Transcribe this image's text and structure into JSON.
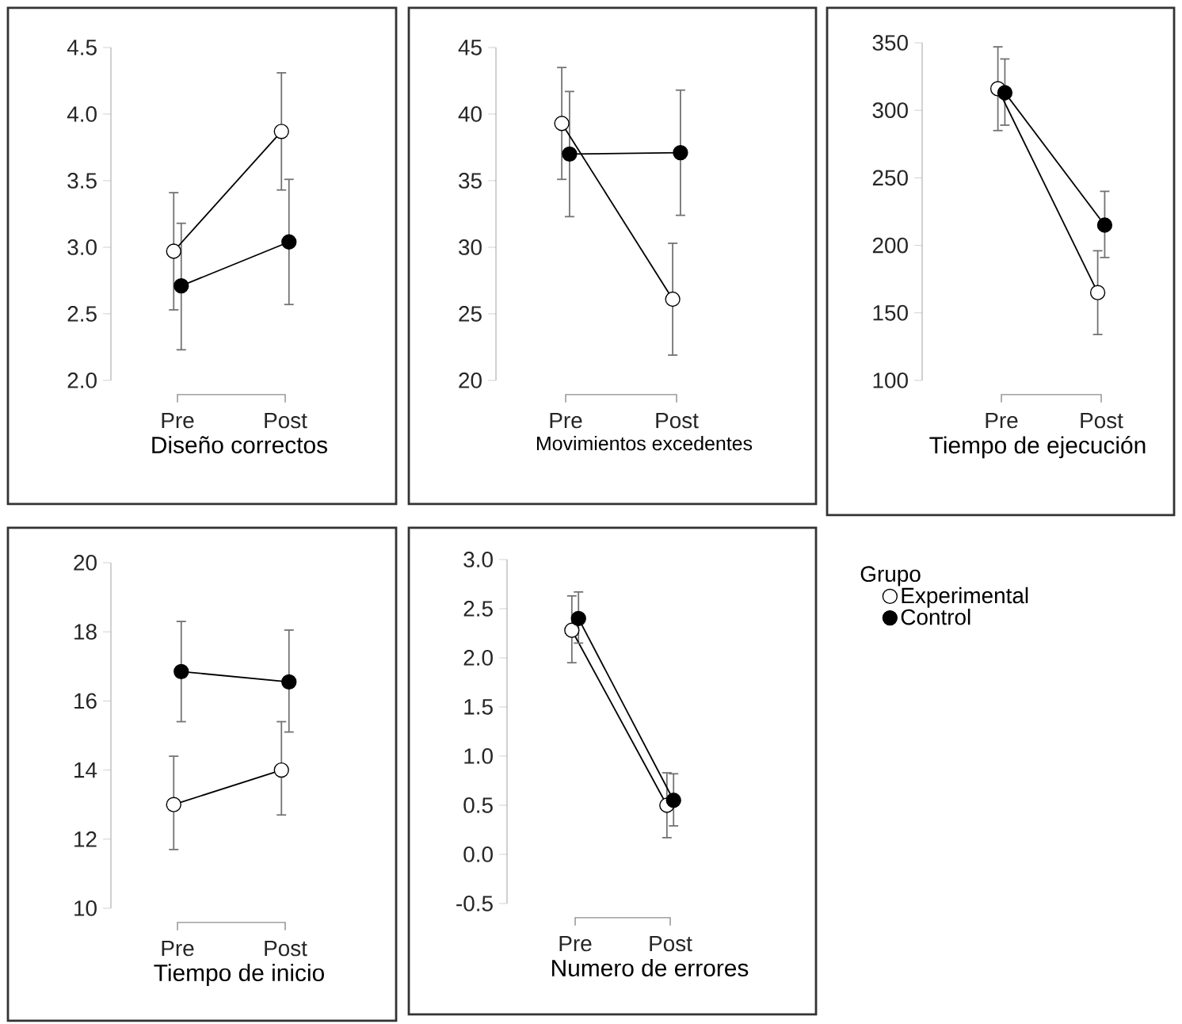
{
  "chart_data": [
    {
      "type": "line",
      "xlabel": "Diseño correctos",
      "categories": [
        "Pre",
        "Post"
      ],
      "ylim": [
        2.0,
        4.5
      ],
      "yticks": [
        {
          "value": 2.0,
          "label": "2.0"
        },
        {
          "value": 2.5,
          "label": "2.5"
        },
        {
          "value": 3.0,
          "label": "3.0"
        },
        {
          "value": 3.5,
          "label": "3.5"
        },
        {
          "value": 4.0,
          "label": "4.0"
        },
        {
          "value": 4.5,
          "label": "4.5"
        }
      ],
      "marker": "circle",
      "line_style": "solid",
      "series": [
        {
          "color": "#ffffff",
          "values": [
            2.97,
            3.87
          ],
          "errors": [
            [
              2.53,
              3.41
            ],
            [
              3.43,
              4.31
            ]
          ]
        },
        {
          "color": "#000000",
          "values": [
            2.71,
            3.04
          ],
          "errors": [
            [
              2.23,
              3.18
            ],
            [
              2.57,
              3.51
            ]
          ]
        }
      ]
    },
    {
      "type": "line",
      "xlabel": "Movimientos excedentes",
      "categories": [
        "Pre",
        "Post"
      ],
      "ylim": [
        20,
        45
      ],
      "yticks": [
        20,
        25,
        30,
        35,
        40,
        45
      ],
      "marker": "circle",
      "line_style": "solid",
      "series": [
        {
          "color": "#ffffff",
          "values": [
            39.3,
            26.1
          ],
          "errors": [
            [
              35.1,
              43.5
            ],
            [
              21.9,
              30.3
            ]
          ]
        },
        {
          "color": "#000000",
          "values": [
            37.0,
            37.1
          ],
          "errors": [
            [
              32.3,
              41.7
            ],
            [
              32.4,
              41.8
            ]
          ]
        }
      ]
    },
    {
      "type": "line",
      "xlabel": "Tiempo de ejecución",
      "categories": [
        "Pre",
        "Post"
      ],
      "ylim": [
        100,
        350
      ],
      "yticks": [
        100,
        150,
        200,
        250,
        300,
        350
      ],
      "marker": "circle",
      "line_style": "solid",
      "series": [
        {
          "color": "#ffffff",
          "values": [
            316,
            165
          ],
          "errors": [
            [
              285,
              347
            ],
            [
              134,
              196
            ]
          ]
        },
        {
          "color": "#000000",
          "values": [
            313,
            215
          ],
          "errors": [
            [
              289,
              338
            ],
            [
              191,
              240
            ]
          ]
        }
      ]
    },
    {
      "type": "line",
      "xlabel": "Tiempo de inicio",
      "categories": [
        "Pre",
        "Post"
      ],
      "ylim": [
        10,
        20
      ],
      "yticks": [
        10,
        12,
        14,
        16,
        18,
        20
      ],
      "marker": "circle",
      "line_style": "solid",
      "series": [
        {
          "color": "#ffffff",
          "values": [
            13.0,
            14.0
          ],
          "errors": [
            [
              11.7,
              14.4
            ],
            [
              12.7,
              15.4
            ]
          ]
        },
        {
          "color": "#000000",
          "values": [
            16.85,
            16.55
          ],
          "errors": [
            [
              15.4,
              18.3
            ],
            [
              15.1,
              18.05
            ]
          ]
        }
      ]
    },
    {
      "type": "line",
      "xlabel": "Numero de errores",
      "categories": [
        "Pre",
        "Post"
      ],
      "ylim": [
        -0.5,
        3.0
      ],
      "yticks": [
        {
          "value": -0.5,
          "label": "-0.5"
        },
        {
          "value": 0.0,
          "label": "0.0"
        },
        {
          "value": 0.5,
          "label": "0.5"
        },
        {
          "value": 1.0,
          "label": "1.0"
        },
        {
          "value": 1.5,
          "label": "1.5"
        },
        {
          "value": 2.0,
          "label": "2.0"
        },
        {
          "value": 2.5,
          "label": "2.5"
        },
        {
          "value": 3.0,
          "label": "3.0"
        }
      ],
      "marker": "circle",
      "line_style": "solid",
      "legend": "right",
      "legend_title": "Grupo",
      "series": [
        {
          "name": "Experimental",
          "color": "#ffffff",
          "values": [
            2.28,
            0.5
          ],
          "errors": [
            [
              1.95,
              2.63
            ],
            [
              0.17,
              0.83
            ]
          ]
        },
        {
          "name": "Control",
          "color": "#000000",
          "values": [
            2.4,
            0.55
          ],
          "errors": [
            [
              2.15,
              2.67
            ],
            [
              0.29,
              0.82
            ]
          ]
        }
      ]
    }
  ]
}
